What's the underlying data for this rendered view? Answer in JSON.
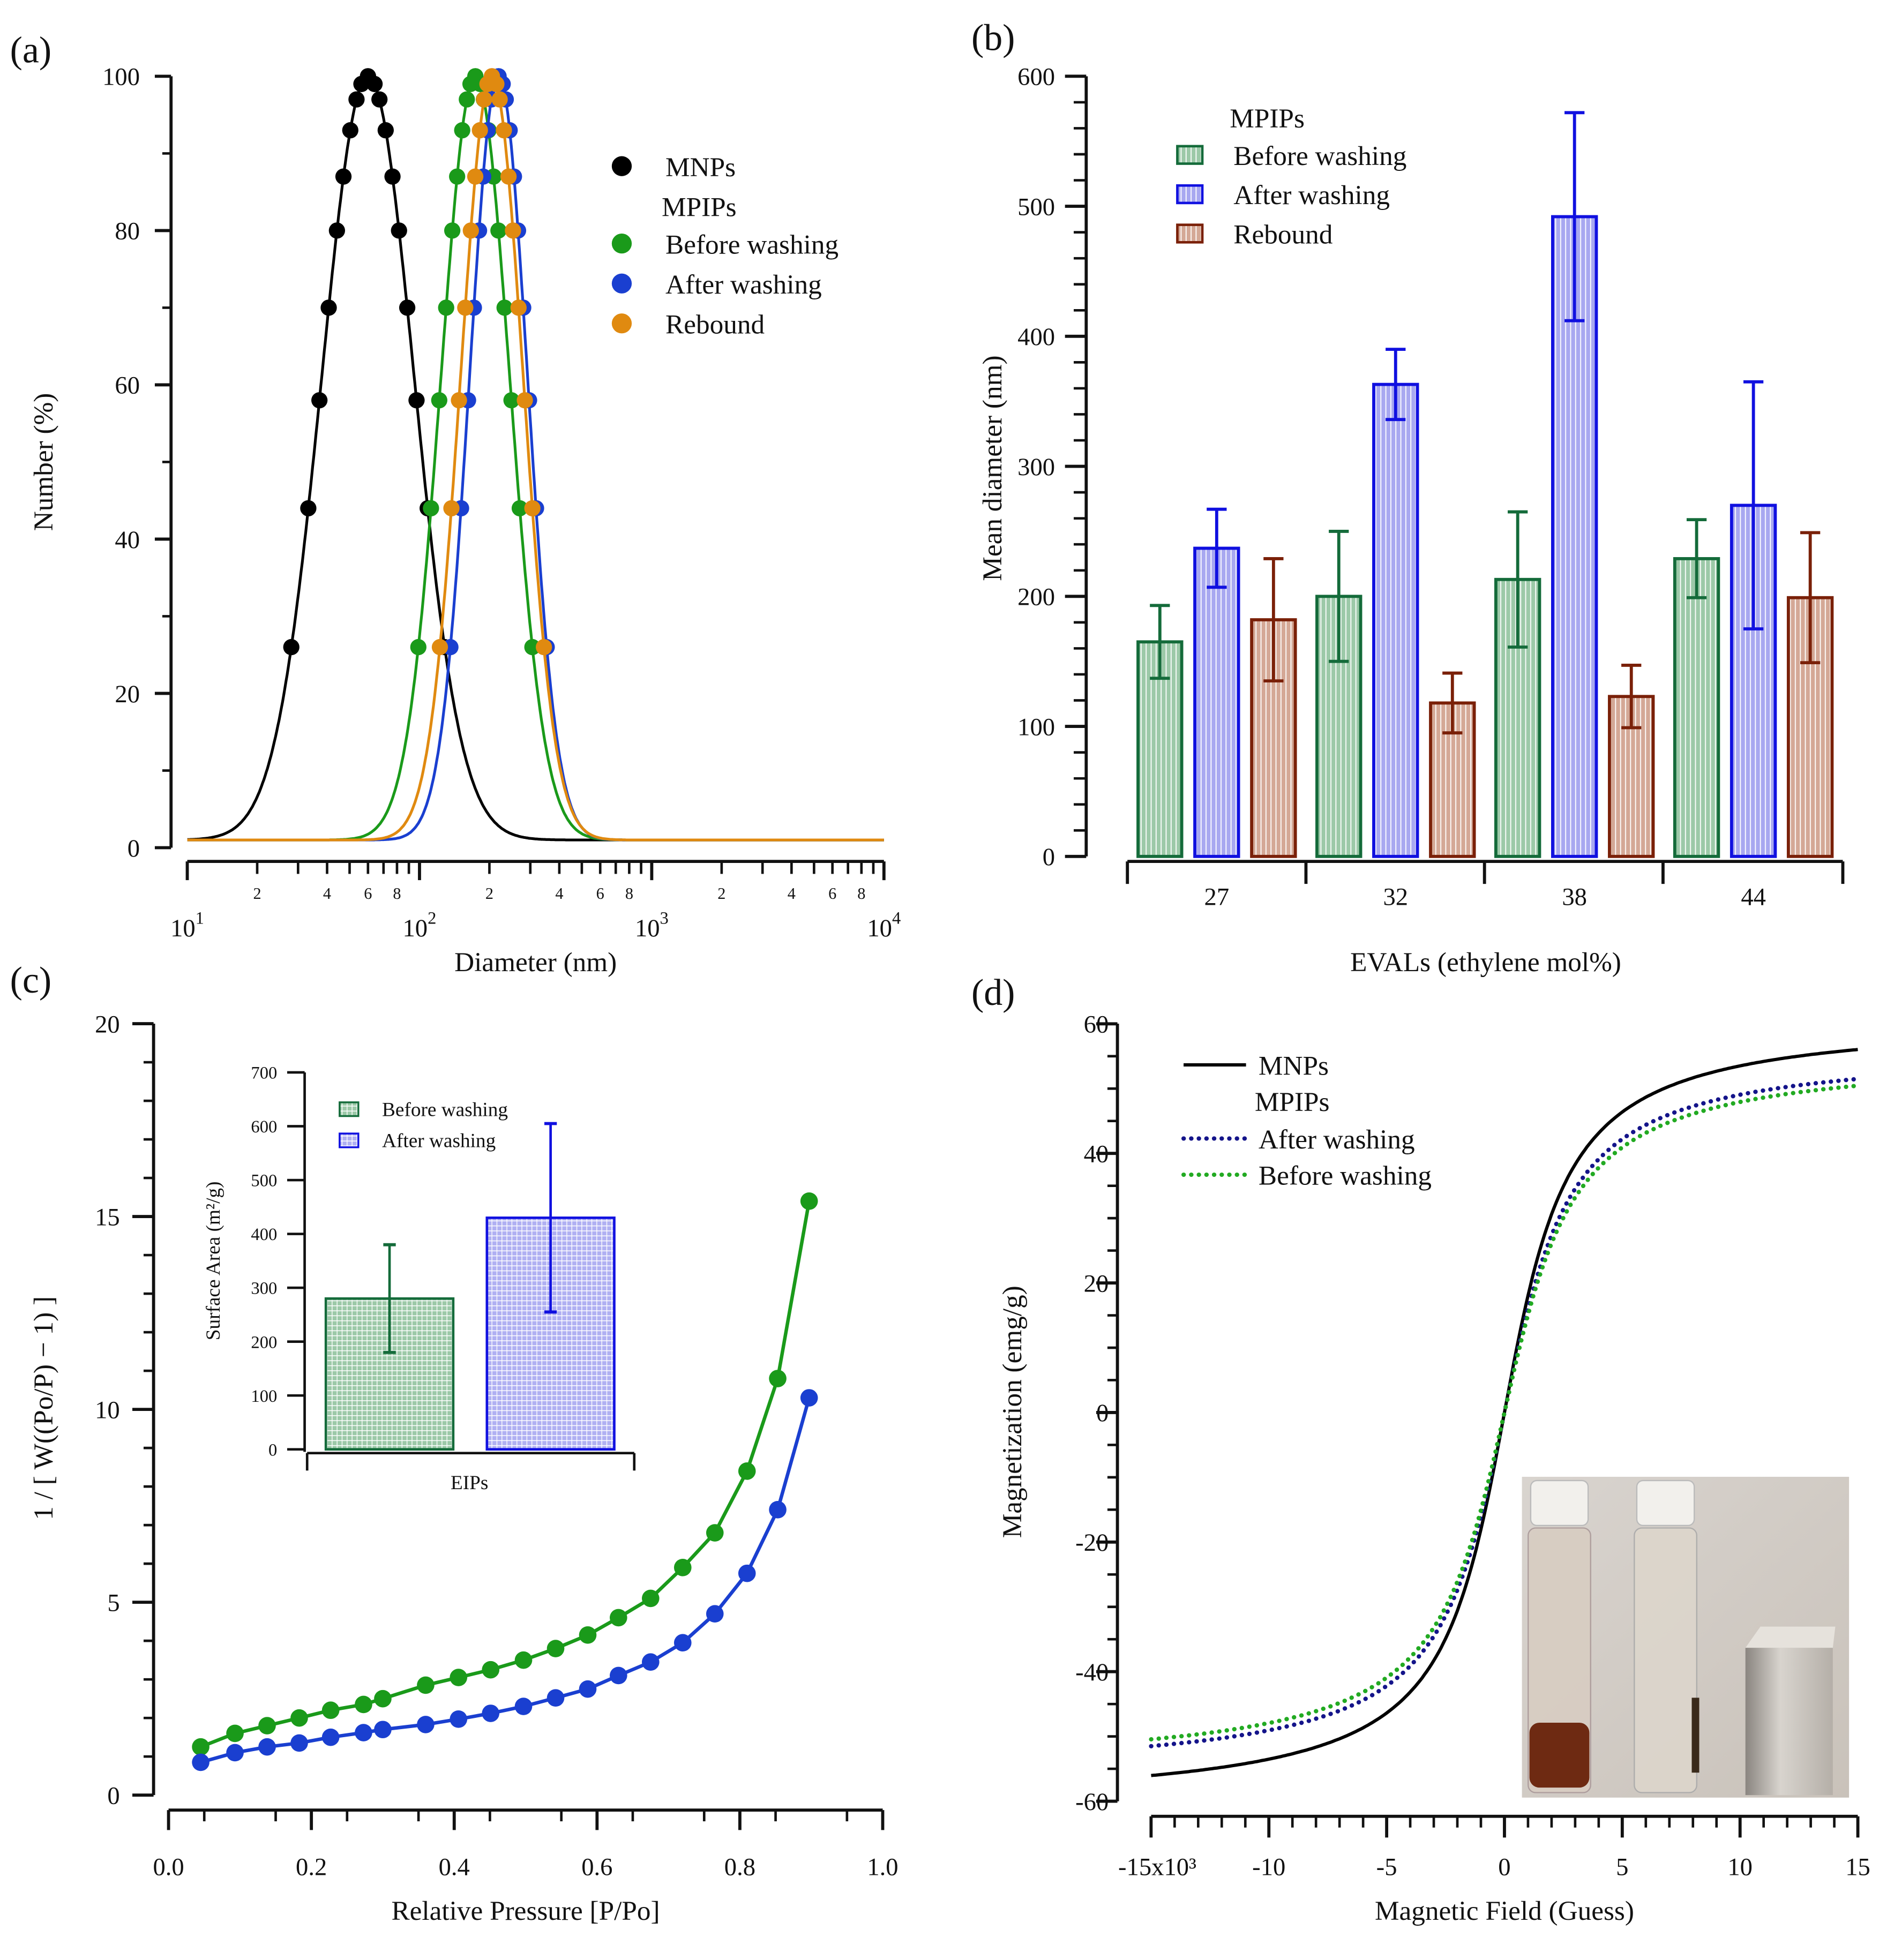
{
  "panel_labels": [
    "(a)",
    "(b)",
    "(c)",
    "(d)"
  ],
  "colors": {
    "black": "#000000",
    "green": "#1a9a1a",
    "blue": "#1a3fd0",
    "orange": "#e08a10",
    "bar_green": "#146b3a",
    "bar_blue": "#1010e0",
    "bar_brown": "#7a2008",
    "mag_green": "#22aa22",
    "mag_blue": "#14148a"
  },
  "chart_data": [
    {
      "id": "a",
      "type": "line",
      "xlabel": "Diameter (nm)",
      "ylabel": "Number (%)",
      "xscale": "log",
      "xlim": [
        10,
        10000
      ],
      "ylim": [
        0,
        100
      ],
      "yticks": [
        "0",
        "20",
        "40",
        "60",
        "80",
        "100"
      ],
      "xmajor": [
        {
          "base": "10",
          "exp": "1"
        },
        {
          "base": "10",
          "exp": "2"
        },
        {
          "base": "10",
          "exp": "3"
        },
        {
          "base": "10",
          "exp": "4"
        }
      ],
      "xminor_labels": [
        "2",
        "4",
        "6",
        "8"
      ],
      "legend": {
        "placement": "top-right",
        "group_title": "MPIPs"
      },
      "marker_levels": [
        26,
        44,
        58,
        70,
        80,
        87,
        93,
        97,
        99,
        100
      ],
      "series": [
        {
          "name": "MNPs",
          "color": "#000000",
          "peak_nm": 60,
          "log_sigma": 0.199,
          "baseline": 1
        },
        {
          "name": "Before washing",
          "color": "#1a9a1a",
          "peak_nm": 174,
          "log_sigma": 0.148,
          "baseline": 1
        },
        {
          "name": "After washing",
          "color": "#1a3fd0",
          "peak_nm": 219,
          "log_sigma": 0.125,
          "baseline": 1
        },
        {
          "name": "Rebound",
          "color": "#e08a10",
          "peak_nm": 205,
          "log_sigma": 0.135,
          "baseline": 1
        }
      ]
    },
    {
      "id": "b",
      "type": "bar",
      "xlabel": "EVALs (ethylene mol%)",
      "ylabel": "Mean diameter (nm)",
      "ylim": [
        0,
        600
      ],
      "yticks": [
        "0",
        "100",
        "200",
        "300",
        "400",
        "500",
        "600"
      ],
      "categories": [
        "27",
        "32",
        "38",
        "44"
      ],
      "legend": {
        "placement": "top-left",
        "group_title": "MPIPs"
      },
      "series": [
        {
          "name": "Before washing",
          "color": "#146b3a",
          "fill": "#8fc4a2",
          "values": [
            165,
            200,
            213,
            229
          ],
          "errors": [
            28,
            50,
            52,
            30
          ]
        },
        {
          "name": "After washing",
          "color": "#1010e0",
          "fill": "#a8a8f0",
          "values": [
            237,
            363,
            492,
            270
          ],
          "errors": [
            30,
            27,
            80,
            95
          ]
        },
        {
          "name": "Rebound",
          "color": "#7a2008",
          "fill": "#d4a896",
          "values": [
            182,
            118,
            123,
            199
          ],
          "errors": [
            47,
            23,
            24,
            50
          ]
        }
      ]
    },
    {
      "id": "c",
      "type": "line",
      "xlabel": "Relative Pressure [P/Po]",
      "ylabel": "1 / [ W((Po/P) − 1) ]",
      "xlim": [
        0,
        1
      ],
      "ylim": [
        0,
        20
      ],
      "xticks": [
        "0.0",
        "0.2",
        "0.4",
        "0.6",
        "0.8",
        "1.0"
      ],
      "yticks": [
        "0",
        "5",
        "10",
        "15",
        "20"
      ],
      "series": [
        {
          "name": "Before washing",
          "color": "#1a9a1a",
          "x": [
            0.045,
            0.093,
            0.138,
            0.183,
            0.227,
            0.273,
            0.3,
            0.36,
            0.406,
            0.451,
            0.497,
            0.542,
            0.587,
            0.63,
            0.675,
            0.72,
            0.765,
            0.81,
            0.853,
            0.897
          ],
          "y": [
            1.25,
            1.6,
            1.8,
            2.0,
            2.2,
            2.35,
            2.5,
            2.85,
            3.05,
            3.25,
            3.5,
            3.8,
            4.15,
            4.6,
            5.1,
            5.9,
            6.8,
            8.4,
            10.8,
            15.4
          ]
        },
        {
          "name": "After washing",
          "color": "#1a3fd0",
          "x": [
            0.045,
            0.093,
            0.138,
            0.183,
            0.227,
            0.273,
            0.3,
            0.36,
            0.406,
            0.451,
            0.497,
            0.542,
            0.587,
            0.63,
            0.675,
            0.72,
            0.765,
            0.81,
            0.853,
            0.897
          ],
          "y": [
            0.85,
            1.1,
            1.25,
            1.35,
            1.5,
            1.62,
            1.7,
            1.83,
            1.97,
            2.12,
            2.3,
            2.52,
            2.75,
            3.1,
            3.45,
            3.95,
            4.7,
            5.75,
            7.4,
            10.3
          ]
        }
      ],
      "inset": {
        "type": "bar",
        "ylabel": "Surface Area (m²/g)",
        "xlabel": "EIPs",
        "ylim": [
          0,
          700
        ],
        "yticks": [
          "0",
          "100",
          "200",
          "300",
          "400",
          "500",
          "600",
          "700"
        ],
        "series": [
          {
            "name": "Before washing",
            "color": "#146b3a",
            "fill": "#9cc9a8",
            "value": 280,
            "error": 100
          },
          {
            "name": "After washing",
            "color": "#1010e0",
            "fill": "#b0b0f2",
            "value": 430,
            "error": 175
          }
        ]
      }
    },
    {
      "id": "d",
      "type": "line",
      "xlabel": "Magnetic Field (Guess)",
      "ylabel": "Magnetization (emg/g)",
      "xlim": [
        -15000,
        15000
      ],
      "ylim": [
        -60,
        60
      ],
      "xticks": [
        "-15x10³",
        "-10",
        "-5",
        "0",
        "5",
        "10",
        "15"
      ],
      "yticks": [
        "-60",
        "-40",
        "-20",
        "0",
        "20",
        "40",
        "60"
      ],
      "legend": {
        "placement": "top-left",
        "group_title": "MPIPs"
      },
      "series": [
        {
          "name": "MNPs",
          "color": "#000000",
          "style": "solid",
          "Ms": 61.2,
          "h0": 2000
        },
        {
          "name": "After washing",
          "color": "#14148a",
          "style": "dotted",
          "Ms": 56.5,
          "h0": 2100
        },
        {
          "name": "Before washing",
          "color": "#22aa22",
          "style": "dotted",
          "Ms": 55.6,
          "h0": 2200
        }
      ]
    }
  ]
}
